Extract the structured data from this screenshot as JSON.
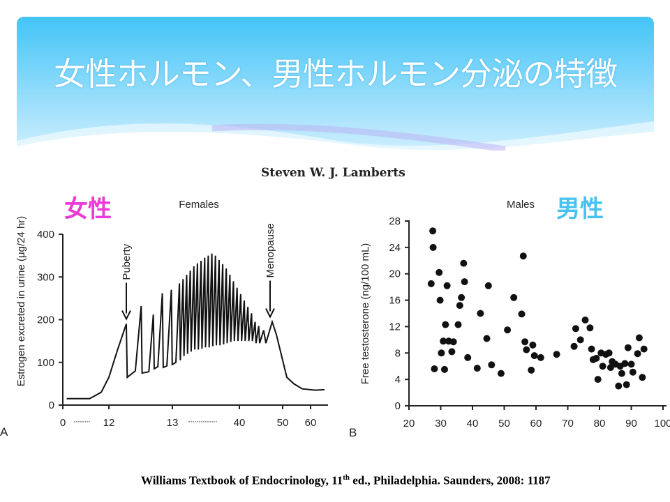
{
  "slide": {
    "title": "女性ホルモン、男性ホルモン分泌の特徴",
    "author": "Steven W. J. Lamberts",
    "female_label": "女性",
    "male_label": "男性",
    "citation": {
      "pre": "Williams Textbook of Endocrinology, 11",
      "sup": "th",
      "post": " ed., Philadelphia. Saunders, 2008: 1187"
    },
    "colors": {
      "banner_top": "#42c4f7",
      "banner_bottom": "#cdeefe",
      "female": "#ea3ad7",
      "male": "#47c2f0"
    }
  },
  "chart_data": [
    {
      "type": "line",
      "panel_label": "A",
      "title": "Females",
      "ylabel": "Estrogen excreted in urine (μg/24 hr)",
      "ylim": [
        0,
        400
      ],
      "yticks": [
        0,
        100,
        200,
        300,
        400
      ],
      "xticks": [
        "0",
        "12",
        "13",
        "40",
        "50",
        "60"
      ],
      "x_breaks": [
        "········",
        "··············"
      ],
      "annotations": [
        {
          "text": "Puberty",
          "x": 15,
          "y": 195
        },
        {
          "text": "Menopause",
          "x": 47,
          "y": 200
        }
      ],
      "series": [
        {
          "name": "Estrogen",
          "points": [
            [
              1,
              15
            ],
            [
              7,
              15
            ],
            [
              10,
              30
            ],
            [
              12,
              65
            ],
            [
              13.5,
              130
            ],
            [
              15,
              190
            ],
            [
              15.2,
              65
            ],
            [
              17,
              80
            ],
            [
              18.3,
              232
            ],
            [
              18.5,
              75
            ],
            [
              20,
              78
            ],
            [
              21,
              212
            ],
            [
              21.2,
              85
            ],
            [
              22,
              90
            ],
            [
              23,
              262
            ],
            [
              23.2,
              88
            ],
            [
              24,
              92
            ],
            [
              25,
              270
            ],
            [
              25.2,
              95
            ],
            [
              26,
              100
            ],
            [
              26.8,
              285
            ],
            [
              27,
              105
            ],
            [
              27.6,
              295
            ],
            [
              27.8,
              115
            ],
            [
              28.4,
              305
            ],
            [
              28.6,
              120
            ],
            [
              29.2,
              315
            ],
            [
              29.4,
              125
            ],
            [
              30,
              325
            ],
            [
              30.2,
              130
            ],
            [
              30.8,
              332
            ],
            [
              31,
              130
            ],
            [
              31.6,
              338
            ],
            [
              31.8,
              132
            ],
            [
              32.4,
              345
            ],
            [
              32.6,
              135
            ],
            [
              33.2,
              350
            ],
            [
              33.4,
              135
            ],
            [
              34,
              355
            ],
            [
              34.2,
              138
            ],
            [
              34.8,
              350
            ],
            [
              35,
              140
            ],
            [
              35.6,
              340
            ],
            [
              35.8,
              140
            ],
            [
              36.4,
              330
            ],
            [
              36.6,
              142
            ],
            [
              37.2,
              320
            ],
            [
              37.4,
              145
            ],
            [
              38,
              305
            ],
            [
              38.2,
              148
            ],
            [
              38.8,
              290
            ],
            [
              39,
              150
            ],
            [
              39.6,
              275
            ],
            [
              39.8,
              150
            ],
            [
              40.4,
              260
            ],
            [
              40.6,
              150
            ],
            [
              41.2,
              245
            ],
            [
              41.4,
              150
            ],
            [
              42,
              230
            ],
            [
              42.2,
              150
            ],
            [
              42.8,
              215
            ],
            [
              43,
              150
            ],
            [
              43.6,
              195
            ],
            [
              43.8,
              145
            ],
            [
              44.4,
              185
            ],
            [
              44.6,
              145
            ],
            [
              45.5,
              175
            ],
            [
              46,
              145
            ],
            [
              47.5,
              195
            ],
            [
              48.5,
              165
            ],
            [
              50,
              105
            ],
            [
              51.5,
              65
            ],
            [
              54,
              50
            ],
            [
              57,
              38
            ],
            [
              61,
              35
            ],
            [
              63,
              36
            ]
          ]
        }
      ]
    },
    {
      "type": "scatter",
      "panel_label": "B",
      "title": "Males",
      "ylabel": "Free testosterone (ng/100 mL)",
      "xlim": [
        20,
        100
      ],
      "ylim": [
        0,
        28
      ],
      "xticks": [
        20,
        30,
        40,
        50,
        60,
        70,
        80,
        90,
        100
      ],
      "yticks": [
        0,
        4,
        8,
        12,
        16,
        20,
        24,
        28
      ],
      "series": [
        {
          "name": "Males",
          "points": [
            [
              27,
              18.5
            ],
            [
              27.5,
              26.5
            ],
            [
              27.6,
              24
            ],
            [
              28,
              5.6
            ],
            [
              29.5,
              20.2
            ],
            [
              29.8,
              16
            ],
            [
              30.2,
              8
            ],
            [
              30.8,
              9.8
            ],
            [
              31.2,
              5.5
            ],
            [
              31.5,
              12.3
            ],
            [
              32,
              18.2
            ],
            [
              32.5,
              9.8
            ],
            [
              33.5,
              8.2
            ],
            [
              34,
              9.7
            ],
            [
              35.5,
              12.3
            ],
            [
              36,
              15.2
            ],
            [
              36.5,
              16.4
            ],
            [
              37.2,
              21.6
            ],
            [
              37.5,
              18.8
            ],
            [
              38.5,
              7.3
            ],
            [
              41.5,
              5.7
            ],
            [
              42.5,
              14
            ],
            [
              44.5,
              10.2
            ],
            [
              45,
              18.2
            ],
            [
              46,
              6.2
            ],
            [
              49,
              4.9
            ],
            [
              51,
              11.5
            ],
            [
              53,
              16.4
            ],
            [
              55.5,
              13.9
            ],
            [
              56,
              22.7
            ],
            [
              56.5,
              9.7
            ],
            [
              57,
              8.5
            ],
            [
              58.5,
              5.4
            ],
            [
              59,
              9.2
            ],
            [
              59.5,
              7.6
            ],
            [
              61.5,
              7.3
            ],
            [
              66.5,
              7.8
            ],
            [
              72,
              9
            ],
            [
              72.5,
              11.7
            ],
            [
              74,
              10
            ],
            [
              75.5,
              13
            ],
            [
              77,
              11.8
            ],
            [
              77.5,
              8.6
            ],
            [
              78,
              7
            ],
            [
              79,
              7.2
            ],
            [
              79.5,
              4
            ],
            [
              80.5,
              8
            ],
            [
              81,
              6
            ],
            [
              82,
              7.8
            ],
            [
              83,
              8
            ],
            [
              83.5,
              5.8
            ],
            [
              84,
              6.7
            ],
            [
              85,
              6.3
            ],
            [
              86,
              3
            ],
            [
              86.5,
              6
            ],
            [
              87,
              4.9
            ],
            [
              88,
              6.4
            ],
            [
              88.5,
              3.2
            ],
            [
              89,
              8.8
            ],
            [
              90,
              6.3
            ],
            [
              90.5,
              5.1
            ],
            [
              92,
              7.9
            ],
            [
              92.5,
              10.3
            ],
            [
              93.5,
              4.3
            ],
            [
              94,
              8.6
            ]
          ]
        }
      ]
    }
  ]
}
